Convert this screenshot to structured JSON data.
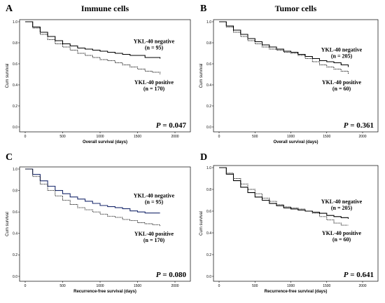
{
  "chart_data": [
    {
      "type": "line",
      "panel": "A",
      "title": "Immune cells",
      "xlabel": "Overall survival (days)",
      "ylabel": "Cum survival",
      "xlim": [
        0,
        2000
      ],
      "ylim": [
        0,
        1.0
      ],
      "xticks": [
        "0",
        "500",
        "1000",
        "1500",
        "2000"
      ],
      "yticks": [
        "0.0",
        "0.2",
        "0.4",
        "0.6",
        "0.8",
        "1.0"
      ],
      "p_prefix": "P",
      "p_value": "= 0.047",
      "series": [
        {
          "name": "YKL-40 negative",
          "n_label": "(n = 95)",
          "style": "solid",
          "color": "#000000",
          "x": [
            0,
            100,
            200,
            300,
            400,
            500,
            600,
            700,
            800,
            900,
            1000,
            1100,
            1200,
            1300,
            1400,
            1500,
            1600,
            1700,
            1800
          ],
          "y": [
            1.0,
            0.95,
            0.9,
            0.86,
            0.82,
            0.79,
            0.77,
            0.75,
            0.74,
            0.73,
            0.72,
            0.71,
            0.7,
            0.69,
            0.68,
            0.68,
            0.66,
            0.66,
            0.65
          ]
        },
        {
          "name": "YKL-40 positive",
          "n_label": "(n = 170)",
          "style": "dotted",
          "color": "#000000",
          "x": [
            0,
            100,
            200,
            300,
            400,
            500,
            600,
            700,
            800,
            900,
            1000,
            1100,
            1200,
            1300,
            1400,
            1500,
            1600,
            1700,
            1800
          ],
          "y": [
            1.0,
            0.94,
            0.88,
            0.83,
            0.79,
            0.76,
            0.73,
            0.7,
            0.68,
            0.66,
            0.64,
            0.63,
            0.61,
            0.59,
            0.57,
            0.55,
            0.53,
            0.52,
            0.5
          ]
        }
      ]
    },
    {
      "type": "line",
      "panel": "B",
      "title": "Tumor cells",
      "xlabel": "Overall survival (days)",
      "ylabel": "Cum survival",
      "xlim": [
        0,
        2000
      ],
      "ylim": [
        0,
        1.0
      ],
      "xticks": [
        "0",
        "500",
        "1000",
        "1500",
        "2000"
      ],
      "yticks": [
        "0.0",
        "0.2",
        "0.4",
        "0.6",
        "0.8",
        "1.0"
      ],
      "p_prefix": "P",
      "p_value": "= 0.361",
      "series": [
        {
          "name": "YKL-40 negative",
          "n_label": "(n = 205)",
          "style": "solid",
          "color": "#000000",
          "x": [
            0,
            100,
            200,
            300,
            400,
            500,
            600,
            700,
            800,
            900,
            1000,
            1100,
            1200,
            1300,
            1400,
            1500,
            1600,
            1700,
            1800
          ],
          "y": [
            1.0,
            0.96,
            0.92,
            0.88,
            0.84,
            0.81,
            0.78,
            0.76,
            0.74,
            0.72,
            0.71,
            0.69,
            0.67,
            0.65,
            0.63,
            0.62,
            0.61,
            0.59,
            0.57
          ]
        },
        {
          "name": "YKL-40 positive",
          "n_label": "(n = 60)",
          "style": "dotted",
          "color": "#000000",
          "x": [
            0,
            100,
            200,
            300,
            400,
            500,
            600,
            700,
            800,
            900,
            1000,
            1100,
            1200,
            1300,
            1400,
            1500,
            1600,
            1700,
            1800
          ],
          "y": [
            1.0,
            0.95,
            0.9,
            0.86,
            0.82,
            0.79,
            0.76,
            0.74,
            0.73,
            0.71,
            0.7,
            0.68,
            0.65,
            0.62,
            0.59,
            0.57,
            0.55,
            0.53,
            0.5
          ]
        }
      ]
    },
    {
      "type": "line",
      "panel": "C",
      "title": "",
      "xlabel": "Recurrence-free survival (days)",
      "ylabel": "Cum survival",
      "xlim": [
        0,
        2000
      ],
      "ylim": [
        0,
        1.0
      ],
      "xticks": [
        "0",
        "500",
        "1000",
        "1500",
        "2000"
      ],
      "yticks": [
        "0.0",
        "0.2",
        "0.4",
        "0.6",
        "0.8",
        "1.0"
      ],
      "p_prefix": "P",
      "p_value": "= 0.080",
      "series": [
        {
          "name": "YKL-40 negative",
          "n_label": "(n = 95)",
          "style": "solid",
          "color": "#1a2a6c",
          "x": [
            0,
            100,
            200,
            300,
            400,
            500,
            600,
            700,
            800,
            900,
            1000,
            1100,
            1200,
            1300,
            1400,
            1500,
            1600,
            1700,
            1800
          ],
          "y": [
            1.0,
            0.95,
            0.89,
            0.84,
            0.8,
            0.77,
            0.74,
            0.72,
            0.7,
            0.68,
            0.66,
            0.65,
            0.64,
            0.63,
            0.61,
            0.6,
            0.59,
            0.59,
            0.59
          ]
        },
        {
          "name": "YKL-40 positive",
          "n_label": "(n = 170)",
          "style": "dotted",
          "color": "#000000",
          "x": [
            0,
            100,
            200,
            300,
            400,
            500,
            600,
            700,
            800,
            900,
            1000,
            1100,
            1200,
            1300,
            1400,
            1500,
            1600,
            1700,
            1800
          ],
          "y": [
            1.0,
            0.93,
            0.86,
            0.8,
            0.75,
            0.71,
            0.67,
            0.64,
            0.62,
            0.6,
            0.58,
            0.56,
            0.55,
            0.53,
            0.52,
            0.5,
            0.49,
            0.48,
            0.47
          ]
        }
      ]
    },
    {
      "type": "line",
      "panel": "D",
      "title": "",
      "xlabel": "Recurrence-free survival (days)",
      "ylabel": "Cum survival",
      "xlim": [
        0,
        2000
      ],
      "ylim": [
        0,
        1.0
      ],
      "xticks": [
        "0",
        "500",
        "1000",
        "1500",
        "2000"
      ],
      "yticks": [
        "0.0",
        "0.2",
        "0.4",
        "0.6",
        "0.8",
        "1.0"
      ],
      "p_prefix": "P",
      "p_value": "= 0.641",
      "series": [
        {
          "name": "YKL-40 negative",
          "n_label": "(n = 205)",
          "style": "solid",
          "color": "#000000",
          "x": [
            0,
            100,
            200,
            300,
            400,
            500,
            600,
            700,
            800,
            900,
            1000,
            1100,
            1200,
            1300,
            1400,
            1500,
            1600,
            1700,
            1800
          ],
          "y": [
            1.0,
            0.94,
            0.88,
            0.82,
            0.77,
            0.73,
            0.7,
            0.67,
            0.65,
            0.63,
            0.62,
            0.61,
            0.6,
            0.59,
            0.58,
            0.56,
            0.55,
            0.54,
            0.53
          ]
        },
        {
          "name": "YKL-40 positive",
          "n_label": "(n = 60)",
          "style": "dotted",
          "color": "#000000",
          "x": [
            0,
            100,
            200,
            300,
            400,
            500,
            600,
            700,
            800,
            900,
            1000,
            1100,
            1200,
            1300,
            1400,
            1500,
            1600,
            1700,
            1800
          ],
          "y": [
            1.0,
            0.95,
            0.9,
            0.85,
            0.8,
            0.76,
            0.72,
            0.69,
            0.66,
            0.64,
            0.63,
            0.62,
            0.6,
            0.58,
            0.55,
            0.52,
            0.49,
            0.47,
            0.47
          ]
        }
      ]
    }
  ]
}
